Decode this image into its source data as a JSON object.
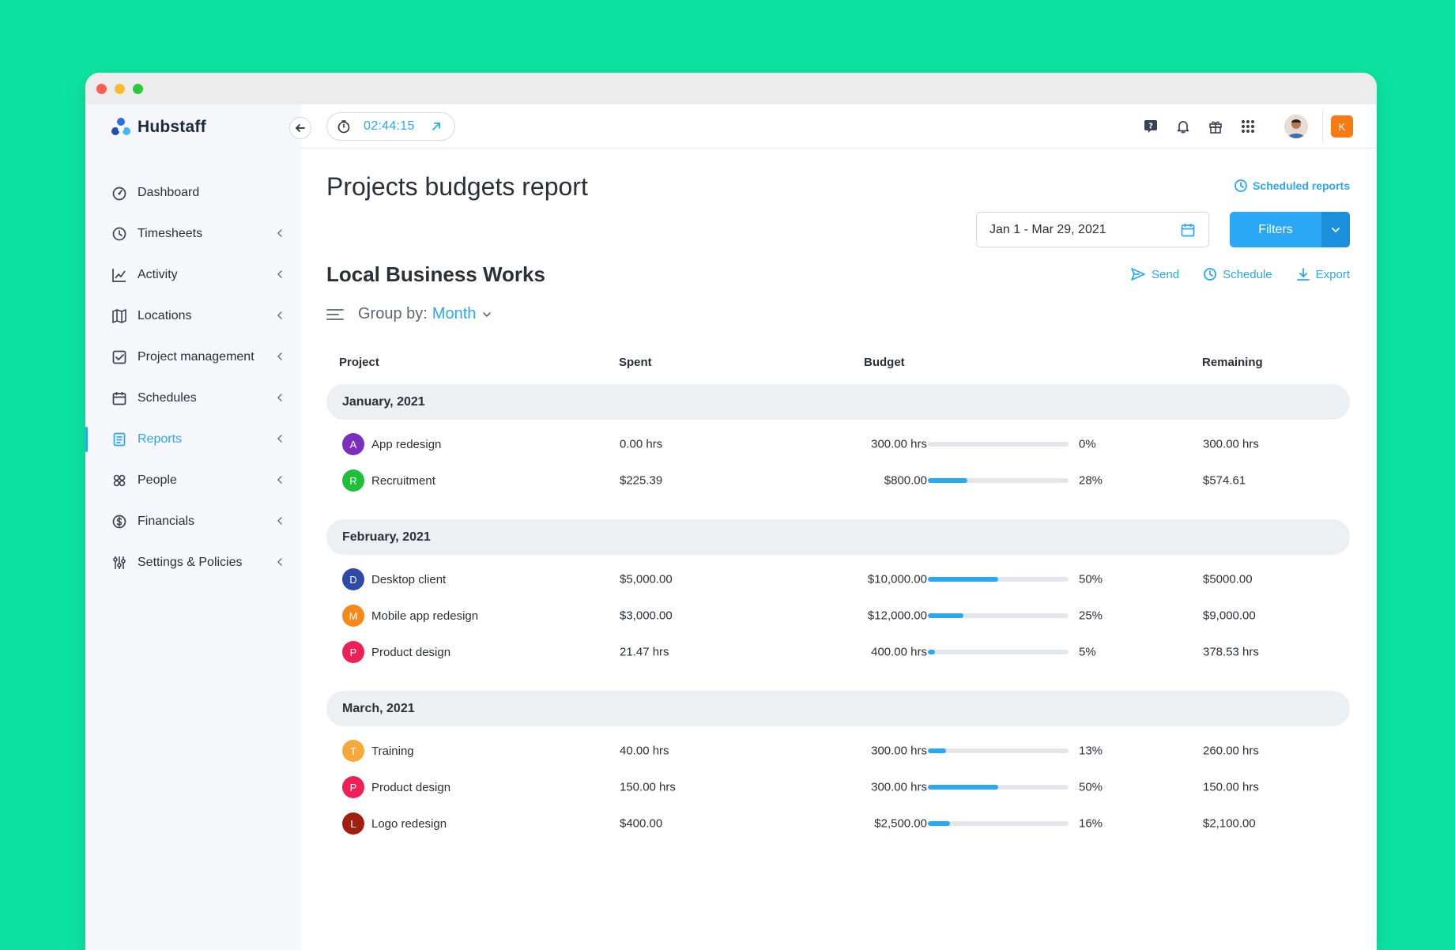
{
  "app": {
    "name": "Hubstaff"
  },
  "timer": {
    "value": "02:44:15"
  },
  "sidebar": {
    "items": [
      {
        "label": "Dashboard",
        "icon": "dashboard-icon",
        "chevron": false,
        "active": false
      },
      {
        "label": "Timesheets",
        "icon": "clock-icon",
        "chevron": true,
        "active": false
      },
      {
        "label": "Activity",
        "icon": "activity-chart-icon",
        "chevron": true,
        "active": false
      },
      {
        "label": "Locations",
        "icon": "map-icon",
        "chevron": true,
        "active": false
      },
      {
        "label": "Project management",
        "icon": "checkbox-icon",
        "chevron": true,
        "active": false
      },
      {
        "label": "Schedules",
        "icon": "calendar-icon",
        "chevron": true,
        "active": false
      },
      {
        "label": "Reports",
        "icon": "report-icon",
        "chevron": true,
        "active": true
      },
      {
        "label": "People",
        "icon": "people-icon",
        "chevron": true,
        "active": false
      },
      {
        "label": "Financials",
        "icon": "dollar-icon",
        "chevron": true,
        "active": false
      },
      {
        "label": "Settings & Policies",
        "icon": "sliders-icon",
        "chevron": true,
        "active": false
      }
    ]
  },
  "topbar": {
    "user_initial": "K"
  },
  "page": {
    "title": "Projects budgets report",
    "scheduled_reports": "Scheduled reports",
    "date_range": "Jan 1 - Mar 29, 2021",
    "filters_label": "Filters",
    "org_name": "Local Business Works",
    "actions": {
      "send": "Send",
      "schedule": "Schedule",
      "export": "Export"
    },
    "group_by_label": "Group by:",
    "group_by_value": "Month"
  },
  "table": {
    "columns": {
      "project": "Project",
      "spent": "Spent",
      "budget": "Budget",
      "remaining": "Remaining"
    },
    "groups": [
      {
        "title": "January, 2021",
        "rows": [
          {
            "letter": "A",
            "color": "#7b2fbf",
            "name": "App redesign",
            "spent": "0.00 hrs",
            "budget": "300.00 hrs",
            "progress": 0,
            "pct": "0%",
            "remaining": "300.00 hrs"
          },
          {
            "letter": "R",
            "color": "#1fbf3a",
            "name": "Recruitment",
            "spent": "$225.39",
            "budget": "$800.00",
            "progress": 28,
            "pct": "28%",
            "remaining": "$574.61"
          }
        ]
      },
      {
        "title": "February, 2021",
        "rows": [
          {
            "letter": "D",
            "color": "#2f4aa6",
            "name": "Desktop client",
            "spent": "$5,000.00",
            "budget": "$10,000.00",
            "progress": 50,
            "pct": "50%",
            "remaining": "$5000.00"
          },
          {
            "letter": "M",
            "color": "#f7891b",
            "name": "Mobile app redesign",
            "spent": "$3,000.00",
            "budget": "$12,000.00",
            "progress": 25,
            "pct": "25%",
            "remaining": "$9,000.00"
          },
          {
            "letter": "P",
            "color": "#ef1f57",
            "name": "Product design",
            "spent": "21.47 hrs",
            "budget": "400.00 hrs",
            "progress": 5,
            "pct": "5%",
            "remaining": "378.53 hrs"
          }
        ]
      },
      {
        "title": "March, 2021",
        "rows": [
          {
            "letter": "T",
            "color": "#f7a83a",
            "name": "Training",
            "spent": "40.00 hrs",
            "budget": "300.00 hrs",
            "progress": 13,
            "pct": "13%",
            "remaining": "260.00 hrs"
          },
          {
            "letter": "P",
            "color": "#ef1f57",
            "name": "Product design",
            "spent": "150.00 hrs",
            "budget": "300.00 hrs",
            "progress": 50,
            "pct": "50%",
            "remaining": "150.00 hrs"
          },
          {
            "letter": "L",
            "color": "#a0200f",
            "name": "Logo redesign",
            "spent": "$400.00",
            "budget": "$2,500.00",
            "progress": 16,
            "pct": "16%",
            "remaining": "$2,100.00"
          }
        ]
      }
    ]
  },
  "colors": {
    "accent": "#2aa7f5",
    "background": "#0de3a0",
    "user_badge": "#f77b14"
  }
}
